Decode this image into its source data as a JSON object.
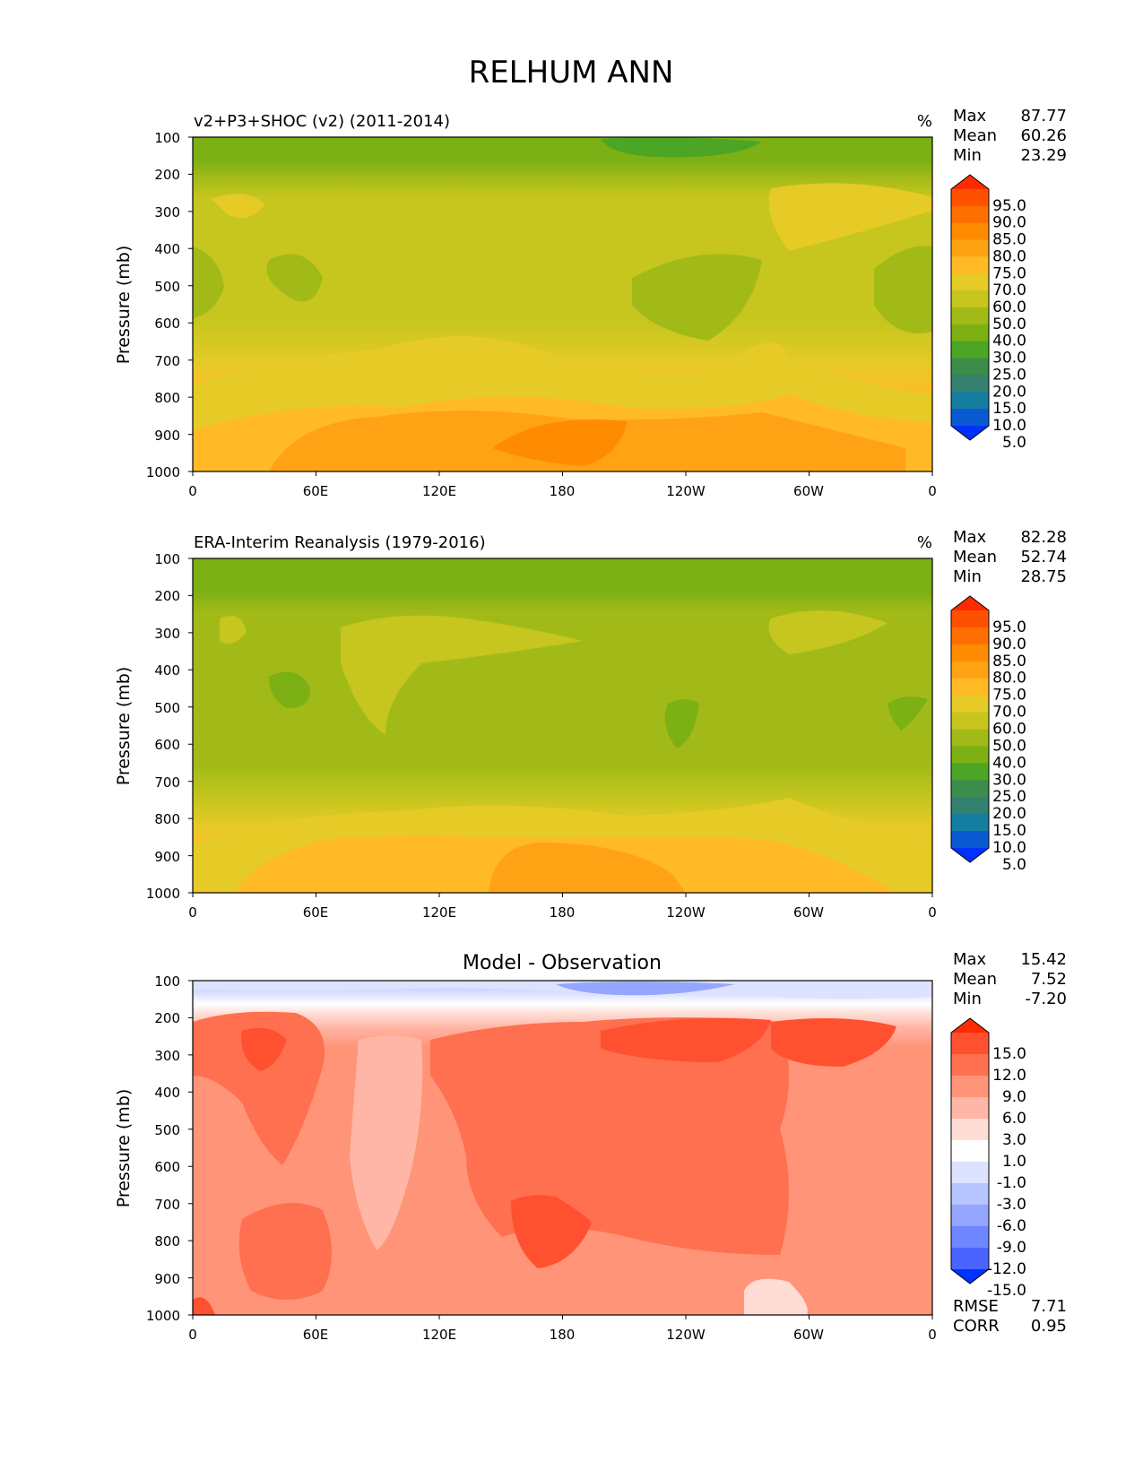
{
  "figure": {
    "title": "RELHUM ANN"
  },
  "chart_data": [
    {
      "type": "heatmap",
      "panel": "test",
      "title": "v2+P3+SHOC (v2) (2011-2014)",
      "units": "%",
      "ylabel": "Pressure (mb)",
      "xlabel": "",
      "x_ticks": [
        "0",
        "60E",
        "120E",
        "180",
        "120W",
        "60W",
        "0"
      ],
      "y_ticks": [
        "100",
        "200",
        "300",
        "400",
        "500",
        "600",
        "700",
        "800",
        "900",
        "1000"
      ],
      "ylim": [
        1000,
        100
      ],
      "stats": [
        {
          "label": "Max",
          "value": "87.77"
        },
        {
          "label": "Mean",
          "value": "60.26"
        },
        {
          "label": "Min",
          "value": "23.29"
        }
      ],
      "colorbar": {
        "levels": [
          "95.0",
          "90.0",
          "85.0",
          "80.0",
          "75.0",
          "70.0",
          "60.0",
          "50.0",
          "40.0",
          "30.0",
          "25.0",
          "20.0",
          "15.0",
          "10.0",
          "5.0"
        ],
        "colors": [
          "#ff2a00",
          "#ff5000",
          "#ff6e00",
          "#ff8c00",
          "#ffa214",
          "#ffba26",
          "#e6ca26",
          "#c6c61e",
          "#a2ba18",
          "#7cb014",
          "#4ca524",
          "#3c8c4c",
          "#34806e",
          "#157da0",
          "#0a5ad2",
          "#0032ff"
        ]
      },
      "description_bands_pct_by_pressure": {
        "pressure_mb": [
          100,
          150,
          200,
          300,
          400,
          500,
          600,
          700,
          800,
          850,
          900,
          1000
        ],
        "zonal_mean_rh": [
          32,
          40,
          48,
          58,
          56,
          52,
          55,
          62,
          70,
          78,
          82,
          80
        ]
      }
    },
    {
      "type": "heatmap",
      "panel": "reference",
      "title": "ERA-Interim Reanalysis (1979-2016)",
      "units": "%",
      "ylabel": "Pressure (mb)",
      "xlabel": "",
      "x_ticks": [
        "0",
        "60E",
        "120E",
        "180",
        "120W",
        "60W",
        "0"
      ],
      "y_ticks": [
        "100",
        "200",
        "300",
        "400",
        "500",
        "600",
        "700",
        "800",
        "900",
        "1000"
      ],
      "ylim": [
        1000,
        100
      ],
      "stats": [
        {
          "label": "Max",
          "value": "82.28"
        },
        {
          "label": "Mean",
          "value": "52.74"
        },
        {
          "label": "Min",
          "value": "28.75"
        }
      ],
      "colorbar": {
        "levels": [
          "95.0",
          "90.0",
          "85.0",
          "80.0",
          "75.0",
          "70.0",
          "60.0",
          "50.0",
          "40.0",
          "30.0",
          "25.0",
          "20.0",
          "15.0",
          "10.0",
          "5.0"
        ],
        "colors": [
          "#ff2a00",
          "#ff5000",
          "#ff6e00",
          "#ff8c00",
          "#ffa214",
          "#ffba26",
          "#e6ca26",
          "#c6c61e",
          "#a2ba18",
          "#7cb014",
          "#4ca524",
          "#3c8c4c",
          "#34806e",
          "#157da0",
          "#0a5ad2",
          "#0032ff"
        ]
      }
    },
    {
      "type": "heatmap",
      "panel": "difference",
      "title": "Model - Observation",
      "units": "",
      "ylabel": "Pressure (mb)",
      "xlabel": "",
      "x_ticks": [
        "0",
        "60E",
        "120E",
        "180",
        "120W",
        "60W",
        "0"
      ],
      "y_ticks": [
        "100",
        "200",
        "300",
        "400",
        "500",
        "600",
        "700",
        "800",
        "900",
        "1000"
      ],
      "ylim": [
        1000,
        100
      ],
      "stats": [
        {
          "label": "Max",
          "value": "15.42"
        },
        {
          "label": "Mean",
          "value": "7.52"
        },
        {
          "label": "Min",
          "value": "-7.20"
        }
      ],
      "metrics": [
        {
          "label": "RMSE",
          "value": "7.71"
        },
        {
          "label": "CORR",
          "value": "0.95"
        }
      ],
      "colorbar": {
        "levels": [
          "15.0",
          "12.0",
          "9.0",
          "6.0",
          "3.0",
          "1.0",
          "-1.0",
          "-3.0",
          "-6.0",
          "-9.0",
          "-12.0",
          "-15.0"
        ],
        "colors": [
          "#ff2a00",
          "#ff5030",
          "#ff7050",
          "#ff9478",
          "#ffb6a6",
          "#ffdcd4",
          "#ffffff",
          "#dce2ff",
          "#b6c4ff",
          "#94a6ff",
          "#6e86ff",
          "#4a64ff",
          "#0032ff"
        ]
      }
    }
  ]
}
